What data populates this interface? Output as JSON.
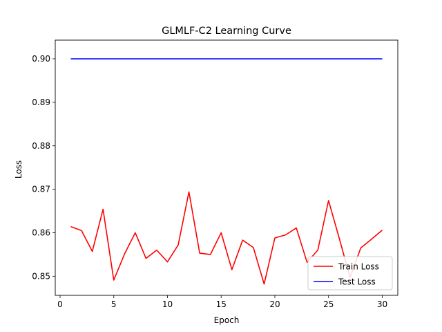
{
  "chart_data": {
    "type": "line",
    "title": "GLMLF-C2 Learning Curve",
    "xlabel": "Epoch",
    "ylabel": "Loss",
    "xlim": [
      -0.45,
      31.45
    ],
    "ylim": [
      0.8456,
      0.9043
    ],
    "xticks": [
      0,
      5,
      10,
      15,
      20,
      25,
      30
    ],
    "yticks": [
      0.85,
      0.86,
      0.87,
      0.88,
      0.89,
      0.9
    ],
    "ytick_labels": [
      "0.85",
      "0.86",
      "0.87",
      "0.88",
      "0.89",
      "0.90"
    ],
    "grid": false,
    "legend_position": "lower-right",
    "x": [
      1,
      2,
      3,
      4,
      5,
      6,
      7,
      8,
      9,
      10,
      11,
      12,
      13,
      14,
      15,
      16,
      17,
      18,
      19,
      20,
      21,
      22,
      23,
      24,
      25,
      26,
      27,
      28,
      29,
      30
    ],
    "series": [
      {
        "name": "Train Loss",
        "color": "#ff0000",
        "values": [
          0.8614,
          0.8605,
          0.8557,
          0.8654,
          0.8491,
          0.8551,
          0.86,
          0.8541,
          0.856,
          0.8533,
          0.8572,
          0.8694,
          0.8553,
          0.855,
          0.86,
          0.8515,
          0.8583,
          0.8566,
          0.8482,
          0.8588,
          0.8595,
          0.8611,
          0.8532,
          0.856,
          0.8674,
          0.8587,
          0.8497,
          0.8565,
          0.8585,
          0.8606
        ]
      },
      {
        "name": "Test Loss",
        "color": "#0000ff",
        "values": [
          0.9,
          0.9,
          0.9,
          0.9,
          0.9,
          0.9,
          0.9,
          0.9,
          0.9,
          0.9,
          0.9,
          0.9,
          0.9,
          0.9,
          0.9,
          0.9,
          0.9,
          0.9,
          0.9,
          0.9,
          0.9,
          0.9,
          0.9,
          0.9,
          0.9,
          0.9,
          0.9,
          0.9,
          0.9,
          0.9
        ]
      }
    ]
  }
}
